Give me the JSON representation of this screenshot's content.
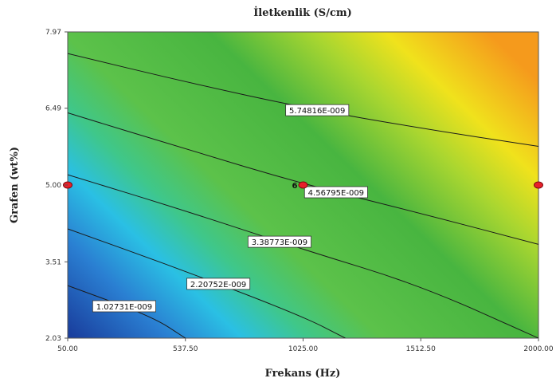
{
  "chart_data": {
    "type": "contour",
    "title": "İletkenlik (S/cm)",
    "xlabel": "Frekans (Hz)",
    "ylabel": "Grafen (wt%)",
    "xlim": [
      50.0,
      2000.0
    ],
    "ylim": [
      2.03,
      7.97
    ],
    "x_ticks": [
      "50.00",
      "537.50",
      "1025.00",
      "1512.50",
      "2000.00"
    ],
    "y_ticks": [
      "2.03",
      "3.51",
      "5.00",
      "6.49",
      "7.97"
    ],
    "colormap": [
      "#1a3f9e",
      "#2aa7e0",
      "#34c8b0",
      "#5cc24a",
      "#48b540",
      "#c8e12a",
      "#f2e21c",
      "#f6a21b"
    ],
    "contours": [
      {
        "label": "1.02731E-009",
        "points": [
          [
            50,
            3.05
          ],
          [
            400,
            2.45
          ],
          [
            537.5,
            2.03
          ]
        ]
      },
      {
        "label": "2.20752E-009",
        "points": [
          [
            50,
            4.15
          ],
          [
            537.5,
            3.33
          ],
          [
            1025,
            2.45
          ],
          [
            1200,
            2.03
          ]
        ]
      },
      {
        "label": "3.38773E-009",
        "points": [
          [
            50,
            5.2
          ],
          [
            537.5,
            4.5
          ],
          [
            1025,
            3.75
          ],
          [
            1512.5,
            3.05
          ],
          [
            2000,
            2.03
          ]
        ]
      },
      {
        "label": "4.56795E-009",
        "points": [
          [
            50,
            6.4
          ],
          [
            537.5,
            5.7
          ],
          [
            1025,
            5.02
          ],
          [
            1512.5,
            4.45
          ],
          [
            2000,
            3.85
          ]
        ]
      },
      {
        "label": "5.74816E-009",
        "points": [
          [
            50,
            7.55
          ],
          [
            537.5,
            7.0
          ],
          [
            1025,
            6.5
          ],
          [
            1512.5,
            6.1
          ],
          [
            2000,
            5.75
          ]
        ]
      }
    ],
    "design_points": [
      {
        "x": 50.0,
        "y": 5.0
      },
      {
        "x": 1025.0,
        "y": 5.0,
        "label": "6"
      },
      {
        "x": 2000.0,
        "y": 5.0
      }
    ]
  }
}
